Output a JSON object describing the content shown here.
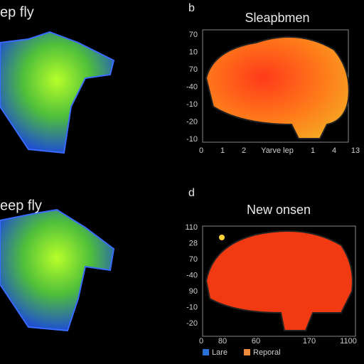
{
  "panels": [
    {
      "title": "ep fly"
    },
    {
      "label": "b",
      "title": "Sleapbmen",
      "y_labels": [
        "70",
        "10",
        "70",
        "-40",
        "-10",
        "-20",
        "-10"
      ],
      "x_labels": [
        "0",
        "1",
        "2",
        "Yarve lep",
        "1",
        "4",
        "13"
      ]
    },
    {
      "title": "eep fly"
    },
    {
      "label": "d",
      "title": "New onsen",
      "y_labels": [
        "110",
        "28",
        "70",
        "-40",
        "90",
        "-10",
        "-20"
      ],
      "x_labels": [
        "0",
        "80",
        "60",
        "170",
        "1100"
      ],
      "legend": [
        {
          "name": "Lare",
          "color": "#2a6fd6"
        },
        {
          "name": "Reporal",
          "color": "#f08a3c"
        }
      ]
    }
  ]
}
